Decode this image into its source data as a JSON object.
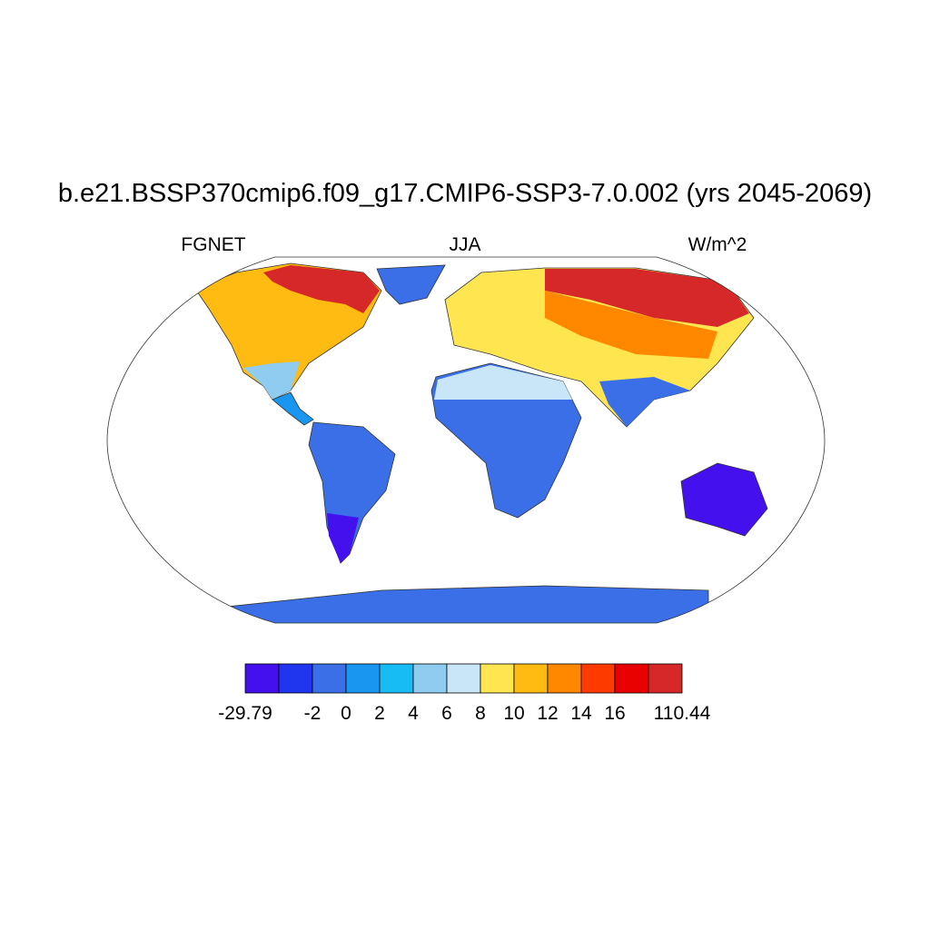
{
  "map": {
    "title": "b.e21.BSSP370cmip6.f09_g17.CMIP6-SSP3-7.0.002 (yrs 2045-2069)",
    "left_label": "FGNET",
    "center_label": "JJA",
    "right_label": "W/m^2",
    "colorbar": {
      "colors": [
        "#4411ee",
        "#1f35ee",
        "#3a6fe8",
        "#1896f0",
        "#18bcf4",
        "#90ccf0",
        "#c8e6f8",
        "#ffe650",
        "#ffbb11",
        "#ff8800",
        "#ff3a00",
        "#e90000",
        "#d62828"
      ],
      "labels": [
        -29.79,
        null,
        -2,
        0,
        2,
        4,
        6,
        8,
        10,
        12,
        14,
        16,
        null,
        110.44
      ]
    }
  }
}
